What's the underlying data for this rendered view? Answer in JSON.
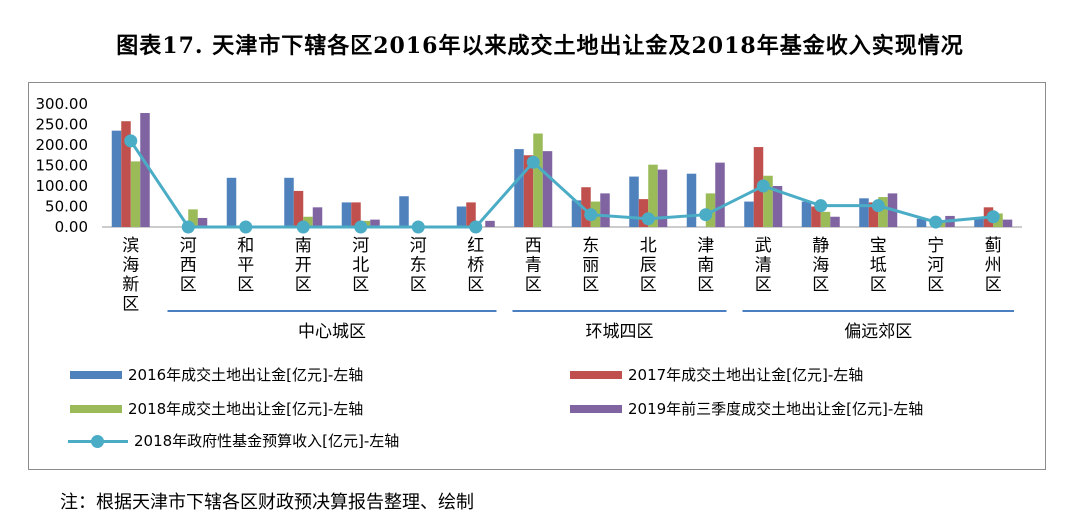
{
  "title": "图表17. 天津市下辖各区2016年以来成交土地出让金及2018年基金收入实现情况",
  "note": "注：根据天津市下辖各区财政预决算报告整理、绘制",
  "chart_data": {
    "type": "bar",
    "categories": [
      "滨海新区",
      "河西区",
      "和平区",
      "南开区",
      "河北区",
      "河东区",
      "红桥区",
      "西青区",
      "东丽区",
      "北辰区",
      "津南区",
      "武清区",
      "静海区",
      "宝坻区",
      "宁河区",
      "蓟州区"
    ],
    "groups": [
      {
        "label": "中心城区",
        "from": 1,
        "to": 6
      },
      {
        "label": "环城四区",
        "from": 7,
        "to": 10
      },
      {
        "label": "偏远郊区",
        "from": 11,
        "to": 15
      }
    ],
    "y_ticks": [
      "300.00",
      "250.00",
      "200.00",
      "150.00",
      "100.00",
      "50.00",
      "0.00"
    ],
    "ylim": [
      0,
      300
    ],
    "series": [
      {
        "name": "2016年成交土地出让金[亿元]-左轴",
        "kind": "bar",
        "color": "#4f81bd",
        "values": [
          235,
          0,
          120,
          120,
          60,
          75,
          50,
          190,
          65,
          123,
          130,
          62,
          62,
          70,
          20,
          20
        ]
      },
      {
        "name": "2017年成交土地出让金[亿元]-左轴",
        "kind": "bar",
        "color": "#c0504d",
        "values": [
          258,
          0,
          0,
          88,
          60,
          0,
          60,
          175,
          97,
          68,
          0,
          195,
          50,
          60,
          0,
          48
        ]
      },
      {
        "name": "2018年成交土地出让金[亿元]-左轴",
        "kind": "bar",
        "color": "#9bbb59",
        "values": [
          160,
          43,
          0,
          25,
          15,
          0,
          0,
          228,
          62,
          152,
          82,
          125,
          37,
          73,
          12,
          33
        ]
      },
      {
        "name": "2019年前三季度成交土地出让金[亿元]-左轴",
        "kind": "bar",
        "color": "#8064a2",
        "values": [
          278,
          22,
          0,
          48,
          18,
          0,
          15,
          185,
          82,
          140,
          157,
          100,
          25,
          82,
          27,
          18
        ]
      },
      {
        "name": "2018年政府性基金预算收入[亿元]-左轴",
        "kind": "line",
        "color": "#4bacc6",
        "values": [
          210,
          0,
          0,
          0,
          0,
          0,
          0,
          158,
          30,
          20,
          30,
          100,
          52,
          52,
          12,
          25
        ]
      }
    ]
  }
}
